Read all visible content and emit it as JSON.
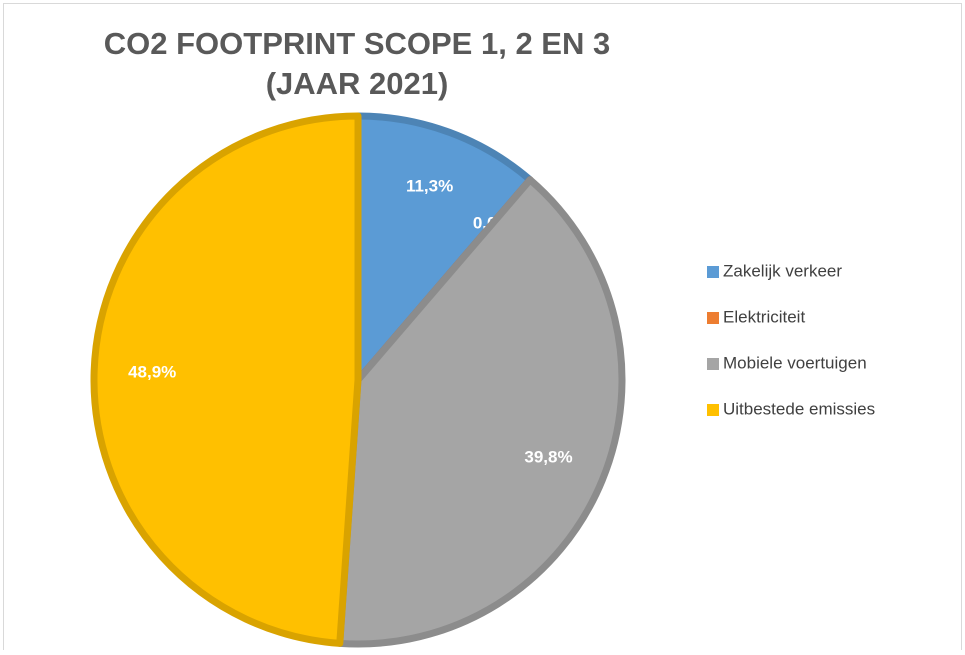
{
  "chart_data": {
    "type": "pie",
    "title": [
      "CO2 FOOTPRINT SCOPE 1, 2 EN 3",
      "(JAAR 2021)"
    ],
    "categories": [
      "Zakelijk verkeer",
      "Elektriciteit",
      "Mobiele voertuigen",
      "Uitbestede emissies"
    ],
    "values": [
      11.3,
      0.0,
      39.8,
      48.9
    ],
    "value_labels": [
      "11,3%",
      "0,0%",
      "39,8%",
      "48,9%"
    ],
    "colors": [
      "#5b9bd5",
      "#ed7d31",
      "#a5a5a5",
      "#ffc000"
    ],
    "legend": "right"
  }
}
